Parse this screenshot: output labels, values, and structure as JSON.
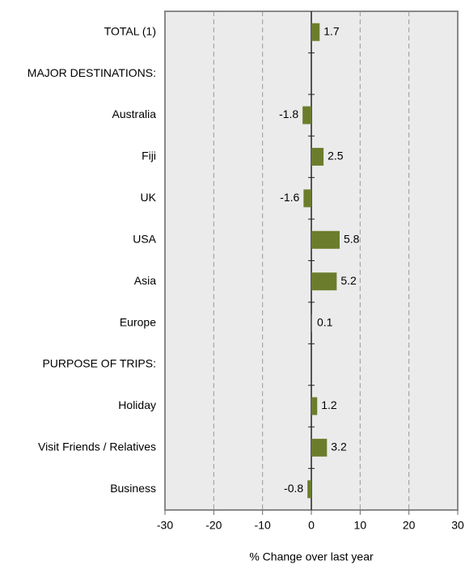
{
  "chart_data": {
    "type": "bar",
    "orientation": "horizontal",
    "categories": [
      "TOTAL (1)",
      "MAJOR DESTINATIONS:",
      "Australia",
      "Fiji",
      "UK",
      "USA",
      "Asia",
      "Europe",
      "PURPOSE OF TRIPS:",
      "Holiday",
      "Visit Friends / Relatives",
      "Business"
    ],
    "values": [
      1.7,
      null,
      -1.8,
      2.5,
      -1.6,
      5.8,
      5.2,
      0.1,
      null,
      1.2,
      3.2,
      -0.8
    ],
    "color": "#6b7d2c",
    "xlim": [
      -30,
      30
    ],
    "xticks": [
      -30,
      -20,
      -10,
      0,
      10,
      20,
      30
    ],
    "xlabel": "% Change over last year",
    "grid": true
  }
}
